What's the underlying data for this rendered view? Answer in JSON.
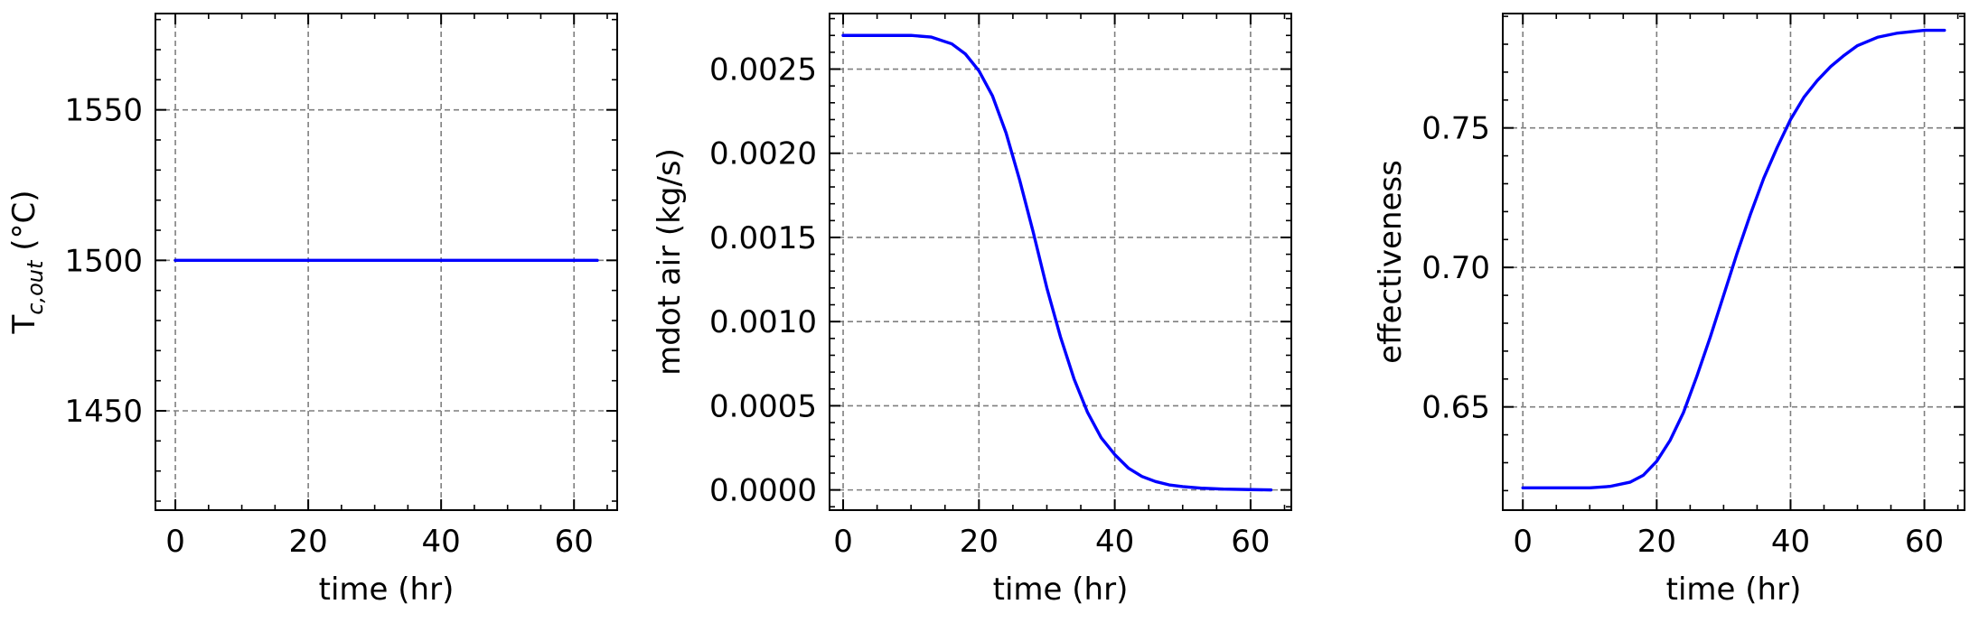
{
  "colors": {
    "line": "#0000ff",
    "grid": "#7f7f7f",
    "axes": "#000000"
  },
  "chart_data": [
    {
      "type": "line",
      "title": "",
      "xlabel": "time (hr)",
      "ylabel": "T",
      "ylabel_sub": "c,out",
      "ylabel_suffix": " (°C)",
      "xlim": [
        -3,
        66.5
      ],
      "ylim": [
        1417,
        1582
      ],
      "grid": true,
      "xticks": [
        0,
        20,
        40,
        60
      ],
      "xtick_labels": [
        "0",
        "20",
        "40",
        "60"
      ],
      "yticks": [
        1450,
        1500,
        1550
      ],
      "ytick_labels": [
        "1450",
        "1500",
        "1550"
      ],
      "series": [
        {
          "x": [
            0,
            5,
            10,
            15,
            20,
            25,
            30,
            35,
            40,
            45,
            50,
            55,
            60,
            63.5
          ],
          "y": [
            1500,
            1500,
            1500,
            1500,
            1500,
            1500,
            1500,
            1500,
            1500,
            1500,
            1500,
            1500,
            1500,
            1500
          ]
        }
      ]
    },
    {
      "type": "line",
      "title": "",
      "xlabel": "time (hr)",
      "ylabel": "mdot air (kg/s)",
      "xlim": [
        -2,
        66
      ],
      "ylim": [
        -0.00012,
        0.00283
      ],
      "grid": true,
      "xticks": [
        0,
        20,
        40,
        60
      ],
      "xtick_labels": [
        "0",
        "20",
        "40",
        "60"
      ],
      "yticks": [
        0,
        0.0005,
        0.001,
        0.0015,
        0.002,
        0.0025
      ],
      "ytick_labels": [
        "0.0000",
        "0.0005",
        "0.0010",
        "0.0015",
        "0.0020",
        "0.0025"
      ],
      "series": [
        {
          "x": [
            0,
            5,
            10,
            13,
            16,
            18,
            20,
            22,
            24,
            26,
            28,
            30,
            32,
            34,
            36,
            38,
            40,
            42,
            44,
            46,
            48,
            50,
            53,
            56,
            60,
            63
          ],
          "y": [
            0.0027,
            0.0027,
            0.0027,
            0.00269,
            0.00265,
            0.00259,
            0.00249,
            0.00234,
            0.00212,
            0.00184,
            0.00153,
            0.0012,
            0.00091,
            0.00066,
            0.00046,
            0.00031,
            0.00021,
            0.00013,
            8e-05,
            5e-05,
            3e-05,
            2e-05,
            1e-05,
            5e-06,
            2e-06,
            0.0
          ]
        }
      ]
    },
    {
      "type": "line",
      "title": "",
      "xlabel": "time (hr)",
      "ylabel": "effectiveness",
      "xlim": [
        -3,
        66
      ],
      "ylim": [
        0.613,
        0.791
      ],
      "grid": true,
      "xticks": [
        0,
        20,
        40,
        60
      ],
      "xtick_labels": [
        "0",
        "20",
        "40",
        "60"
      ],
      "yticks": [
        0.65,
        0.7,
        0.75
      ],
      "ytick_labels": [
        "0.65",
        "0.70",
        "0.75"
      ],
      "series": [
        {
          "x": [
            0,
            5,
            10,
            13,
            16,
            18,
            20,
            22,
            24,
            26,
            28,
            30,
            32,
            34,
            36,
            38,
            40,
            42,
            44,
            46,
            48,
            50,
            53,
            56,
            60,
            63
          ],
          "y": [
            0.621,
            0.621,
            0.621,
            0.6215,
            0.623,
            0.6255,
            0.6305,
            0.638,
            0.648,
            0.661,
            0.675,
            0.69,
            0.705,
            0.719,
            0.732,
            0.743,
            0.753,
            0.761,
            0.767,
            0.772,
            0.776,
            0.7795,
            0.7825,
            0.784,
            0.785,
            0.785
          ]
        }
      ]
    }
  ]
}
